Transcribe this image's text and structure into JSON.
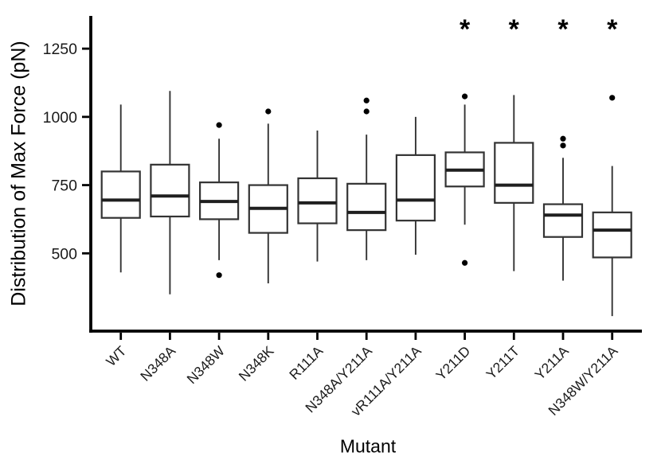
{
  "chart_data": {
    "type": "boxplot",
    "title": "",
    "xlabel": "Mutant",
    "ylabel": "Distribution of Max Force (pN)",
    "ylim": [
      215,
      1365
    ],
    "yticks": [
      500,
      750,
      1000,
      1250
    ],
    "grid": false,
    "legend": "none",
    "significance_marker": "*",
    "categories": [
      "WT",
      "N348A",
      "N348W",
      "N348K",
      "R111A",
      "N348A/Y211A",
      "vR111A/Y211A",
      "Y211D",
      "Y211T",
      "Y211A",
      "N348W/Y211A"
    ],
    "series": [
      {
        "name": "WT",
        "whisker_low": 430,
        "q1": 630,
        "median": 695,
        "q3": 800,
        "whisker_high": 1045,
        "outliers": [],
        "significant": false
      },
      {
        "name": "N348A",
        "whisker_low": 350,
        "q1": 635,
        "median": 710,
        "q3": 825,
        "whisker_high": 1095,
        "outliers": [],
        "significant": false
      },
      {
        "name": "N348W",
        "whisker_low": 475,
        "q1": 625,
        "median": 690,
        "q3": 760,
        "whisker_high": 920,
        "outliers": [
          970,
          420
        ],
        "significant": false
      },
      {
        "name": "N348K",
        "whisker_low": 390,
        "q1": 575,
        "median": 665,
        "q3": 750,
        "whisker_high": 975,
        "outliers": [
          1020
        ],
        "significant": false
      },
      {
        "name": "R111A",
        "whisker_low": 470,
        "q1": 610,
        "median": 685,
        "q3": 775,
        "whisker_high": 950,
        "outliers": [],
        "significant": false
      },
      {
        "name": "N348A/Y211A",
        "whisker_low": 475,
        "q1": 585,
        "median": 650,
        "q3": 755,
        "whisker_high": 935,
        "outliers": [
          1060,
          1020
        ],
        "significant": false
      },
      {
        "name": "vR111A/Y211A",
        "whisker_low": 495,
        "q1": 620,
        "median": 695,
        "q3": 860,
        "whisker_high": 1000,
        "outliers": [],
        "significant": false
      },
      {
        "name": "Y211D",
        "whisker_low": 605,
        "q1": 745,
        "median": 805,
        "q3": 870,
        "whisker_high": 1045,
        "outliers": [
          1075,
          465
        ],
        "significant": true
      },
      {
        "name": "Y211T",
        "whisker_low": 435,
        "q1": 685,
        "median": 750,
        "q3": 905,
        "whisker_high": 1080,
        "outliers": [],
        "significant": true
      },
      {
        "name": "Y211A",
        "whisker_low": 400,
        "q1": 560,
        "median": 640,
        "q3": 680,
        "whisker_high": 850,
        "outliers": [
          920,
          895
        ],
        "significant": true
      },
      {
        "name": "N348W/Y211A",
        "whisker_low": 270,
        "q1": 485,
        "median": 585,
        "q3": 650,
        "whisker_high": 820,
        "outliers": [
          1070
        ],
        "significant": true
      }
    ],
    "colors": {
      "background": "#ffffff",
      "axis": "#000000",
      "text": "#000000",
      "tick_label": "#1a1a1a",
      "box_stroke": "#333333",
      "box_fill": "#ffffff",
      "median": "#1f1f1f",
      "whisker": "#333333",
      "outlier": "#000000"
    }
  }
}
